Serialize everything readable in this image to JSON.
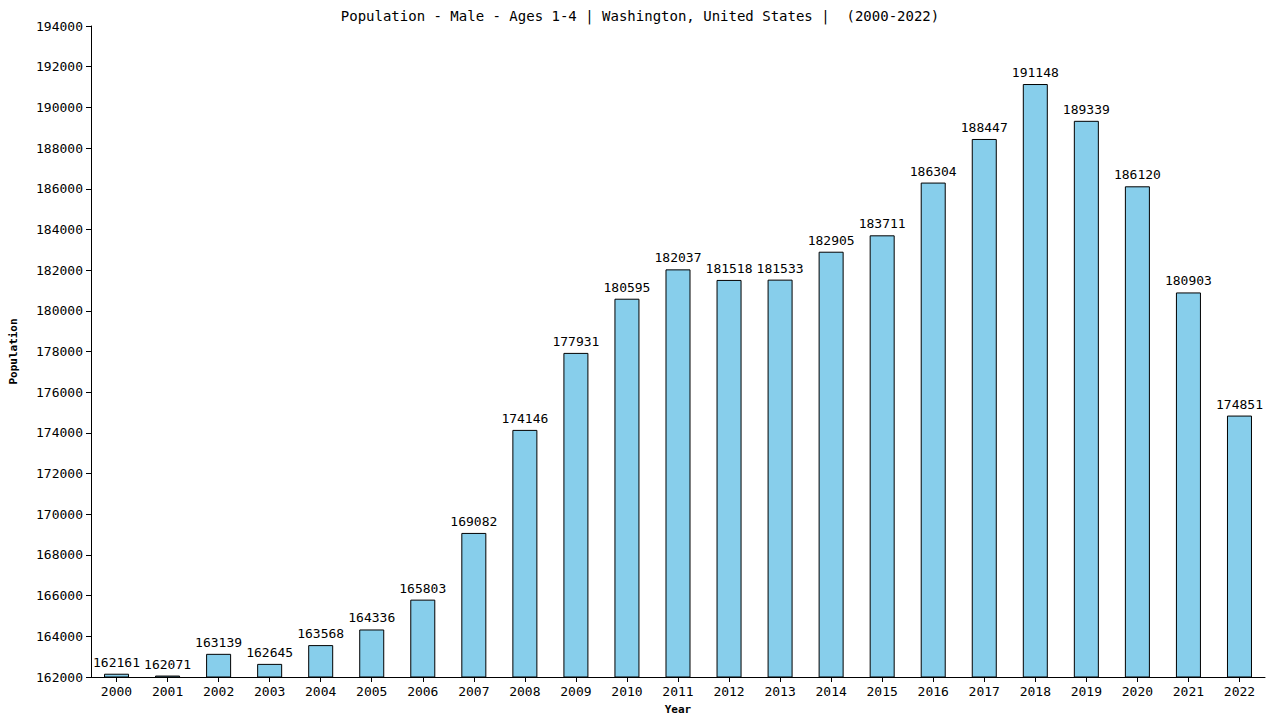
{
  "chart_data": {
    "type": "bar",
    "title": "Population - Male - Ages 1-4 | Washington, United States |  (2000-2022)",
    "x_label": "Year",
    "y_label": "Population",
    "categories": [
      "2000",
      "2001",
      "2002",
      "2003",
      "2004",
      "2005",
      "2006",
      "2007",
      "2008",
      "2009",
      "2010",
      "2011",
      "2012",
      "2013",
      "2014",
      "2015",
      "2016",
      "2017",
      "2018",
      "2019",
      "2020",
      "2021",
      "2022"
    ],
    "values": [
      162161,
      162071,
      163139,
      162645,
      163568,
      164336,
      165803,
      169082,
      174146,
      177931,
      180595,
      182037,
      181518,
      181533,
      182905,
      183711,
      186304,
      188447,
      191148,
      189339,
      186120,
      180903,
      174851
    ],
    "color": "#87ceeb",
    "ylim": [
      162000,
      194000
    ],
    "yticks": [
      162000,
      164000,
      166000,
      168000,
      170000,
      172000,
      174000,
      176000,
      178000,
      180000,
      182000,
      184000,
      186000,
      188000,
      190000,
      192000,
      194000
    ],
    "grid": false,
    "data_labels": true
  }
}
